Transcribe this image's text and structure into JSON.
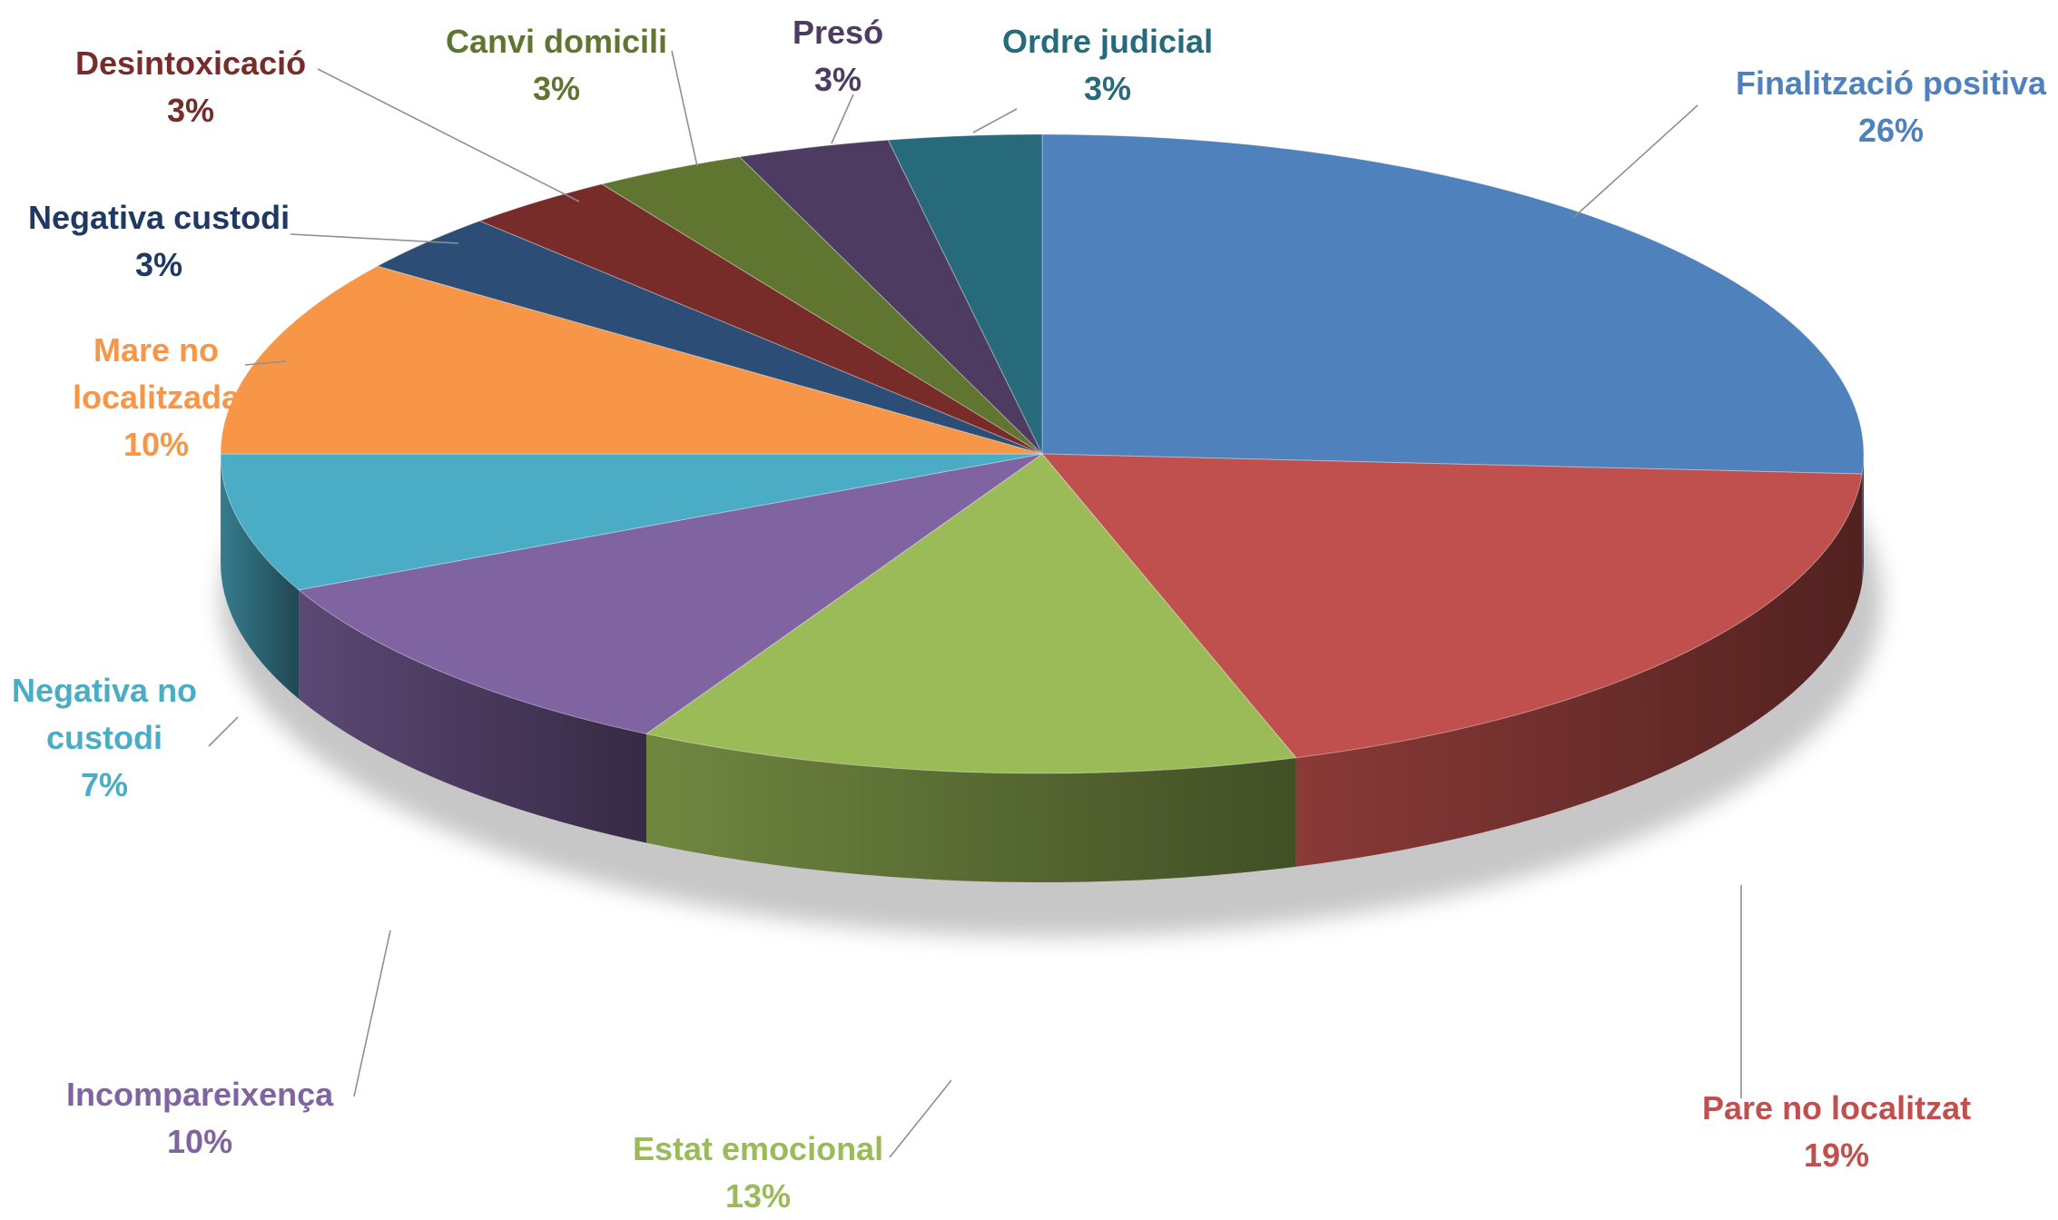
{
  "chart_data": {
    "type": "pie",
    "title": "",
    "style": "3d-exploded-tilted",
    "legend": "none",
    "slices": [
      {
        "id": "finalitzacio",
        "lines": [
          "Finalització positiva"
        ],
        "label": "Finalització positiva",
        "value": 26,
        "pct": "26%",
        "color": "#4F81BD"
      },
      {
        "id": "pare",
        "lines": [
          "Pare no localitzat"
        ],
        "label": "Pare no localitzat",
        "value": 19,
        "pct": "19%",
        "color": "#C0504D"
      },
      {
        "id": "estat",
        "lines": [
          "Estat emocional"
        ],
        "label": "Estat emocional",
        "value": 13,
        "pct": "13%",
        "color": "#9BBB59"
      },
      {
        "id": "incompareixenca",
        "lines": [
          "Incompareixença"
        ],
        "label": "Incompareixença",
        "value": 10,
        "pct": "10%",
        "color": "#8064A2"
      },
      {
        "id": "negativa-no-custodi",
        "lines": [
          "Negativa no",
          "custodi"
        ],
        "label": "Negativa no custodi",
        "value": 7,
        "pct": "7%",
        "color": "#4BACC6"
      },
      {
        "id": "mare",
        "lines": [
          "Mare no",
          "localitzada"
        ],
        "label": "Mare no localitzada",
        "value": 10,
        "pct": "10%",
        "color": "#F79646"
      },
      {
        "id": "negativa-custodi",
        "lines": [
          "Negativa custodi"
        ],
        "label": "Negativa custodi",
        "value": 3,
        "pct": "3%",
        "color": "#2C4D75"
      },
      {
        "id": "desintoxicacio",
        "lines": [
          "Desintoxicació"
        ],
        "label": "Desintoxicació",
        "value": 3,
        "pct": "3%",
        "color": "#772C2A"
      },
      {
        "id": "canvi",
        "lines": [
          "Canvi domicili"
        ],
        "label": "Canvi domicili",
        "value": 3,
        "pct": "3%",
        "color": "#5F7530"
      },
      {
        "id": "preso",
        "lines": [
          "Presó"
        ],
        "label": "Presó",
        "value": 3,
        "pct": "3%",
        "color": "#4D3B62"
      },
      {
        "id": "ordre",
        "lines": [
          "Ordre judicial"
        ],
        "label": "Ordre judicial",
        "value": 3,
        "pct": "3%",
        "color": "#276A7C"
      }
    ]
  }
}
